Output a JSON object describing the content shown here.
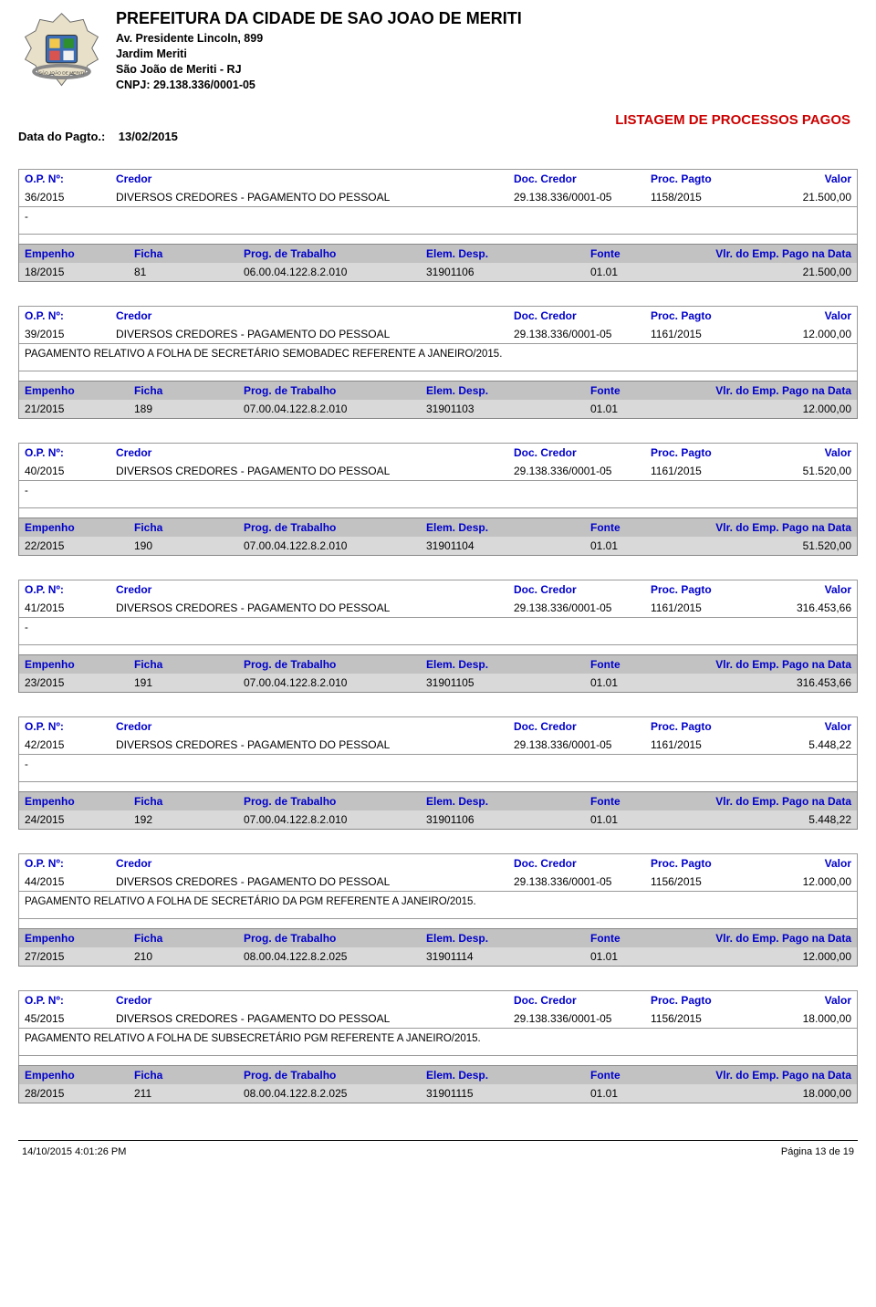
{
  "header": {
    "org": "PREFEITURA DA CIDADE DE SAO JOAO DE MERITI",
    "addr": "Av. Presidente Lincoln, 899",
    "bairro": "Jardim Meriti",
    "cidade": "São João de Meriti - RJ",
    "cnpj": "CNPJ: 29.138.336/0001-05",
    "title": "LISTAGEM DE PROCESSOS PAGOS",
    "data_label": "Data do Pagto.:",
    "data_value": "13/02/2015"
  },
  "labels": {
    "op": "O.P. Nº:",
    "credor": "Credor",
    "doc": "Doc. Credor",
    "proc": "Proc. Pagto",
    "valor": "Valor",
    "empenho": "Empenho",
    "ficha": "Ficha",
    "prog": "Prog. de Trabalho",
    "elem": "Elem. Desp.",
    "fonte": "Fonte",
    "vlr": "Vlr. do Emp. Pago na Data"
  },
  "blocks": [
    {
      "op": "36/2015",
      "credor": "DIVERSOS CREDORES - PAGAMENTO DO  PESSOAL",
      "doc": "29.138.336/0001-05",
      "proc": "1158/2015",
      "valor": "21.500,00",
      "desc": "-",
      "emp": {
        "empenho": "18/2015",
        "ficha": "81",
        "prog": "06.00.04.122.8.2.010",
        "elem": "31901106",
        "fonte": "01.01",
        "vlr": "21.500,00"
      }
    },
    {
      "op": "39/2015",
      "credor": "DIVERSOS CREDORES - PAGAMENTO DO  PESSOAL",
      "doc": "29.138.336/0001-05",
      "proc": "1161/2015",
      "valor": "12.000,00",
      "desc": "PAGAMENTO RELATIVO A FOLHA DE SECRETÁRIO SEMOBADEC REFERENTE A JANEIRO/2015.",
      "emp": {
        "empenho": "21/2015",
        "ficha": "189",
        "prog": "07.00.04.122.8.2.010",
        "elem": "31901103",
        "fonte": "01.01",
        "vlr": "12.000,00"
      }
    },
    {
      "op": "40/2015",
      "credor": "DIVERSOS CREDORES - PAGAMENTO DO  PESSOAL",
      "doc": "29.138.336/0001-05",
      "proc": "1161/2015",
      "valor": "51.520,00",
      "desc": "-",
      "emp": {
        "empenho": "22/2015",
        "ficha": "190",
        "prog": "07.00.04.122.8.2.010",
        "elem": "31901104",
        "fonte": "01.01",
        "vlr": "51.520,00"
      }
    },
    {
      "op": "41/2015",
      "credor": "DIVERSOS CREDORES - PAGAMENTO DO  PESSOAL",
      "doc": "29.138.336/0001-05",
      "proc": "1161/2015",
      "valor": "316.453,66",
      "desc": "-",
      "emp": {
        "empenho": "23/2015",
        "ficha": "191",
        "prog": "07.00.04.122.8.2.010",
        "elem": "31901105",
        "fonte": "01.01",
        "vlr": "316.453,66"
      }
    },
    {
      "op": "42/2015",
      "credor": "DIVERSOS CREDORES - PAGAMENTO DO  PESSOAL",
      "doc": "29.138.336/0001-05",
      "proc": "1161/2015",
      "valor": "5.448,22",
      "desc": "-",
      "emp": {
        "empenho": "24/2015",
        "ficha": "192",
        "prog": "07.00.04.122.8.2.010",
        "elem": "31901106",
        "fonte": "01.01",
        "vlr": "5.448,22"
      }
    },
    {
      "op": "44/2015",
      "credor": "DIVERSOS CREDORES - PAGAMENTO DO  PESSOAL",
      "doc": "29.138.336/0001-05",
      "proc": "1156/2015",
      "valor": "12.000,00",
      "desc": "PAGAMENTO RELATIVO A FOLHA DE SECRETÁRIO DA PGM REFERENTE A JANEIRO/2015.",
      "emp": {
        "empenho": "27/2015",
        "ficha": "210",
        "prog": "08.00.04.122.8.2.025",
        "elem": "31901114",
        "fonte": "01.01",
        "vlr": "12.000,00"
      }
    },
    {
      "op": "45/2015",
      "credor": "DIVERSOS CREDORES - PAGAMENTO DO  PESSOAL",
      "doc": "29.138.336/0001-05",
      "proc": "1156/2015",
      "valor": "18.000,00",
      "desc": "PAGAMENTO RELATIVO A FOLHA DE SUBSECRETÁRIO PGM REFERENTE A JANEIRO/2015.",
      "emp": {
        "empenho": "28/2015",
        "ficha": "211",
        "prog": "08.00.04.122.8.2.025",
        "elem": "31901115",
        "fonte": "01.01",
        "vlr": "18.000,00"
      }
    }
  ],
  "footer": {
    "timestamp": "14/10/2015 4:01:26 PM",
    "page": "Página 13 de 19"
  },
  "colors": {
    "link_blue": "#0000cc",
    "title_red": "#cc0000",
    "header_gray": "#c2c2c2",
    "row_gray": "#d9d9d9",
    "border": "#999999"
  }
}
